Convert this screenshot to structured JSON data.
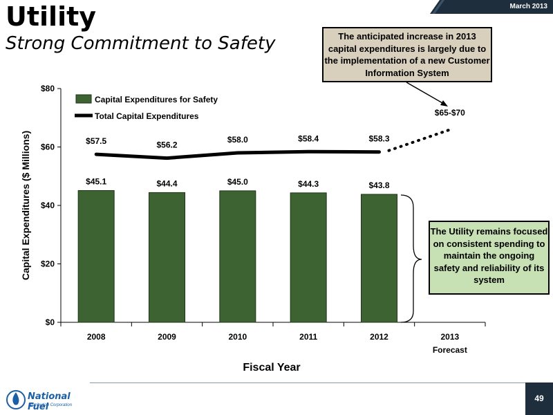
{
  "header": {
    "title": "Utility",
    "subtitle": "Strong Commitment to Safety",
    "date": "March 2013"
  },
  "callouts": {
    "top": "The anticipated increase in 2013 capital expenditures is largely due to the implementation of a new Customer Information System",
    "right": "The Utility remains focused on consistent spending to maintain the ongoing safety and reliability of its system"
  },
  "footer": {
    "page_number": "49",
    "logo_text": "National Fuel",
    "logo_subtext": "Distribution Corporation"
  },
  "chart_data": {
    "type": "bar",
    "categories": [
      "2008",
      "2009",
      "2010",
      "2011",
      "2012",
      "2013"
    ],
    "category_sublabels": [
      "",
      "",
      "",
      "",
      "",
      "Forecast"
    ],
    "xlabel": "Fiscal Year",
    "ylabel": "Capital Expenditures ($ Millions)",
    "ylim": [
      0,
      80
    ],
    "yticks": [
      0,
      20,
      40,
      60,
      80
    ],
    "ytick_labels": [
      "$0",
      "$20",
      "$40",
      "$60",
      "$80"
    ],
    "legend_placement": "top-left",
    "series": [
      {
        "name": "Capital Expenditures for Safety",
        "type": "bar",
        "color": "#3d6332",
        "values": [
          45.1,
          44.4,
          45.0,
          44.3,
          43.8,
          null
        ],
        "labels": [
          "$45.1",
          "$44.4",
          "$45.0",
          "$44.3",
          "$43.8",
          ""
        ]
      },
      {
        "name": "Total Capital Expenditures",
        "type": "line",
        "color": "#000000",
        "values": [
          57.5,
          56.2,
          58.0,
          58.4,
          58.3,
          null
        ],
        "labels": [
          "$57.5",
          "$56.2",
          "$58.0",
          "$58.4",
          "$58.3",
          ""
        ],
        "forecast_label": "$65-$70",
        "forecast_value": 67.5
      }
    ]
  }
}
